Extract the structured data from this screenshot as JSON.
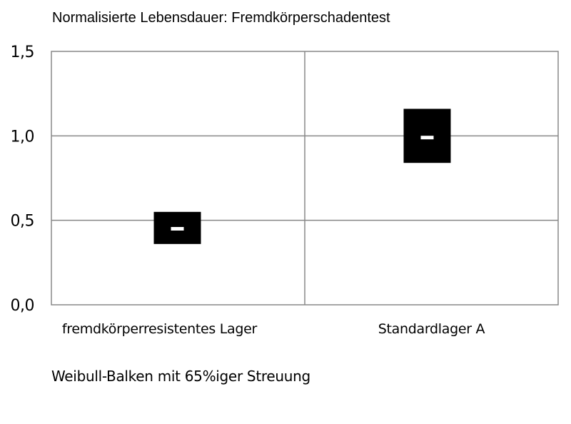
{
  "chart_data": {
    "type": "range-bar",
    "title": "Normalisierte Lebensdauer: Fremdkörperschadentest",
    "xlabel": "",
    "ylabel": "",
    "ylim": [
      0,
      1.5
    ],
    "yticks": [
      0,
      0.5,
      1,
      1.5
    ],
    "ytick_labels": [
      "0,0",
      "0,5",
      "1,0",
      "1,5"
    ],
    "grid": true,
    "categories": [
      "fremdkörperresistentes Lager",
      "Standardlager A"
    ],
    "series": [
      {
        "points": [
          {
            "category": "fremdkörperresistentes Lager",
            "low": 0.36,
            "high": 0.55,
            "median": 0.45
          },
          {
            "category": "Standardlager A",
            "low": 0.84,
            "high": 1.16,
            "median": 0.99
          }
        ]
      }
    ],
    "bar_color": "#000000",
    "median_color": "#ffffff",
    "annotation": "Weibull-Balken mit 65%iger Streuung"
  }
}
